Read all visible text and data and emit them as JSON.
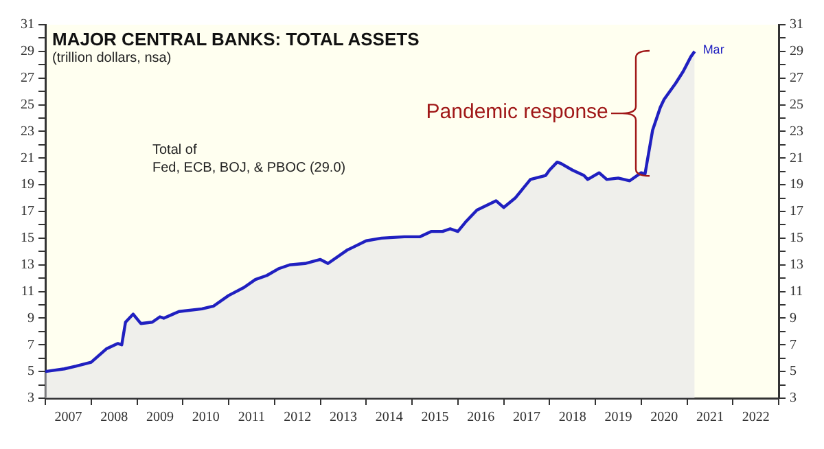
{
  "chart_data": {
    "type": "area",
    "title": "MAJOR CENTRAL BANKS: TOTAL ASSETS",
    "subtitle": "(trillion dollars, nsa)",
    "annotations": [
      "Total of\nFed, ECB, BOJ, & PBOC (29.0)",
      "Pandemic response",
      {
        "text": "Mar",
        "x": "2021-03",
        "y": 29.0
      }
    ],
    "series": [
      {
        "color": "#2020c0",
        "x": [
          "2007-01",
          "2007-06",
          "2007-09",
          "2008-01",
          "2008-05",
          "2008-08",
          "2008-09",
          "2008-10",
          "2008-12",
          "2009-02",
          "2009-05",
          "2009-07",
          "2009-08",
          "2009-12",
          "2010-06",
          "2010-09",
          "2011-01",
          "2011-05",
          "2011-08",
          "2011-11",
          "2012-02",
          "2012-05",
          "2012-09",
          "2013-01",
          "2013-03",
          "2013-08",
          "2014-01",
          "2014-05",
          "2014-11",
          "2015-03",
          "2015-06",
          "2015-09",
          "2015-11",
          "2016-01",
          "2016-03",
          "2016-06",
          "2016-11",
          "2017-01",
          "2017-04",
          "2017-08",
          "2017-12",
          "2018-01",
          "2018-03",
          "2018-04",
          "2018-07",
          "2018-10",
          "2018-11",
          "2019-02",
          "2019-04",
          "2019-07",
          "2019-10",
          "2020-01",
          "2020-02",
          "2020-04",
          "2020-06",
          "2020-07",
          "2020-10",
          "2020-12",
          "2021-02",
          "2021-03"
        ],
        "values": [
          5.0,
          5.2,
          5.4,
          5.7,
          6.7,
          7.1,
          7.0,
          8.7,
          9.3,
          8.6,
          8.7,
          9.1,
          9.0,
          9.5,
          9.7,
          9.9,
          10.7,
          11.3,
          11.9,
          12.2,
          12.7,
          13.0,
          13.1,
          13.4,
          13.1,
          14.1,
          14.8,
          15.0,
          15.1,
          15.1,
          15.5,
          15.5,
          15.7,
          15.5,
          16.2,
          17.1,
          17.8,
          17.3,
          18.0,
          19.4,
          19.7,
          20.1,
          20.7,
          20.6,
          20.1,
          19.7,
          19.4,
          19.9,
          19.4,
          19.5,
          19.3,
          19.9,
          19.8,
          23.1,
          24.8,
          25.4,
          26.6,
          27.5,
          28.6,
          29.0
        ]
      }
    ],
    "xlim": [
      "2007-01",
      "2023-01"
    ],
    "xticks": [
      {
        "value": "2007-01",
        "label": null
      },
      {
        "value": "2007-07",
        "label": "2007"
      },
      {
        "value": "2008-01",
        "label": null
      },
      {
        "value": "2008-07",
        "label": "2008"
      },
      {
        "value": "2009-01",
        "label": null
      },
      {
        "value": "2009-07",
        "label": "2009"
      },
      {
        "value": "2010-01",
        "label": null
      },
      {
        "value": "2010-07",
        "label": "2010"
      },
      {
        "value": "2011-01",
        "label": null
      },
      {
        "value": "2011-07",
        "label": "2011"
      },
      {
        "value": "2012-01",
        "label": null
      },
      {
        "value": "2012-07",
        "label": "2012"
      },
      {
        "value": "2013-01",
        "label": null
      },
      {
        "value": "2013-07",
        "label": "2013"
      },
      {
        "value": "2014-01",
        "label": null
      },
      {
        "value": "2014-07",
        "label": "2014"
      },
      {
        "value": "2015-01",
        "label": null
      },
      {
        "value": "2015-07",
        "label": "2015"
      },
      {
        "value": "2016-01",
        "label": null
      },
      {
        "value": "2016-07",
        "label": "2016"
      },
      {
        "value": "2017-01",
        "label": null
      },
      {
        "value": "2017-07",
        "label": "2017"
      },
      {
        "value": "2018-01",
        "label": null
      },
      {
        "value": "2018-07",
        "label": "2018"
      },
      {
        "value": "2019-01",
        "label": null
      },
      {
        "value": "2019-07",
        "label": "2019"
      },
      {
        "value": "2020-01",
        "label": null
      },
      {
        "value": "2020-07",
        "label": "2020"
      },
      {
        "value": "2021-01",
        "label": null
      },
      {
        "value": "2021-07",
        "label": "2021"
      },
      {
        "value": "2022-01",
        "label": null
      },
      {
        "value": "2022-07",
        "label": "2022"
      },
      {
        "value": "2023-01",
        "label": null
      }
    ],
    "ylim": [
      3,
      31
    ],
    "yticks": [
      3,
      {
        "value": 4,
        "label": null
      },
      5,
      {
        "value": 6,
        "label": null
      },
      7,
      {
        "value": 8,
        "label": null
      },
      9,
      {
        "value": 10,
        "label": null
      },
      11,
      {
        "value": 12,
        "label": null
      },
      13,
      {
        "value": 14,
        "label": null
      },
      15,
      {
        "value": 16,
        "label": null
      },
      17,
      {
        "value": 18,
        "label": null
      },
      19,
      {
        "value": 20,
        "label": null
      },
      21,
      {
        "value": 22,
        "label": null
      },
      23,
      {
        "value": 24,
        "label": null
      },
      25,
      {
        "value": 26,
        "label": null
      },
      27,
      {
        "value": 28,
        "label": null
      },
      29,
      {
        "value": 30,
        "label": null
      },
      31
    ],
    "y2lim": [
      3,
      31
    ],
    "y2ticks": [
      3,
      {
        "value": 4,
        "label": null
      },
      5,
      {
        "value": 6,
        "label": null
      },
      7,
      {
        "value": 8,
        "label": null
      },
      9,
      {
        "value": 10,
        "label": null
      },
      11,
      {
        "value": 12,
        "label": null
      },
      13,
      {
        "value": 14,
        "label": null
      },
      15,
      {
        "value": 16,
        "label": null
      },
      17,
      {
        "value": 18,
        "label": null
      },
      19,
      {
        "value": 20,
        "label": null
      },
      21,
      {
        "value": 22,
        "label": null
      },
      23,
      {
        "value": 24,
        "label": null
      },
      25,
      {
        "value": 26,
        "label": null
      },
      27,
      {
        "value": 28,
        "label": null
      },
      29,
      {
        "value": 30,
        "label": null
      },
      31
    ],
    "grid": false,
    "legend": false
  }
}
